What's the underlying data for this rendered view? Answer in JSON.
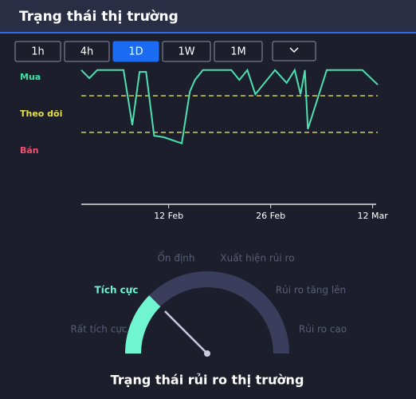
{
  "header": {
    "title": "Trạng thái thị trường"
  },
  "tabs": {
    "items": [
      "1h",
      "4h",
      "1D",
      "1W",
      "1M"
    ],
    "active": 2
  },
  "chart_data": {
    "type": "line",
    "color": "#4de0b0",
    "x": [
      0,
      1.1,
      2.2,
      5.8,
      7.0,
      8.0,
      8.9,
      10.0,
      11.3,
      13.8,
      14.9,
      15.6,
      16.7,
      20.6,
      21.7,
      22.8,
      23.9,
      26.6,
      28.2,
      29.3,
      30.1,
      30.7,
      31.1,
      33.7,
      38.6,
      40.7
    ],
    "values": [
      2.2,
      1.98,
      2.2,
      2.2,
      0.7,
      2.15,
      2.15,
      0.41,
      0.37,
      0.2,
      1.61,
      1.93,
      2.2,
      2.2,
      1.93,
      2.2,
      1.54,
      2.2,
      1.85,
      2.2,
      1.54,
      2.2,
      0.59,
      2.2,
      2.2,
      1.8
    ],
    "xlim": [
      0,
      40.7
    ],
    "xticks": [
      {
        "value": 12,
        "label": "12 Feb"
      },
      {
        "value": 26,
        "label": "26 Feb"
      },
      {
        "value": 40,
        "label": "12 Mar"
      }
    ],
    "ylim": [
      -1.46,
      2.37
    ],
    "yticks": [
      {
        "value": 2,
        "label": "Mua"
      },
      {
        "value": 1,
        "label": "Theo dõi"
      },
      {
        "value": 0,
        "label": "Bán"
      }
    ],
    "ytick_colors": [
      "#3fe0a8",
      "#e8e04a",
      "#f2506e"
    ],
    "reference_lines": [
      1.5,
      0.5
    ],
    "reference_color": "#d6cf4a"
  },
  "gauge": {
    "title": "Trạng thái rủi ro thị trường",
    "levels": [
      "Rất tích cực",
      "Tích cực",
      "Ổn định",
      "Xuất hiện rủi ro",
      "Rủi ro tăng lên",
      "Rủi ro cao"
    ],
    "active": 1,
    "active_color": "#6ff5cf",
    "track_color": "#3a3d5c"
  }
}
